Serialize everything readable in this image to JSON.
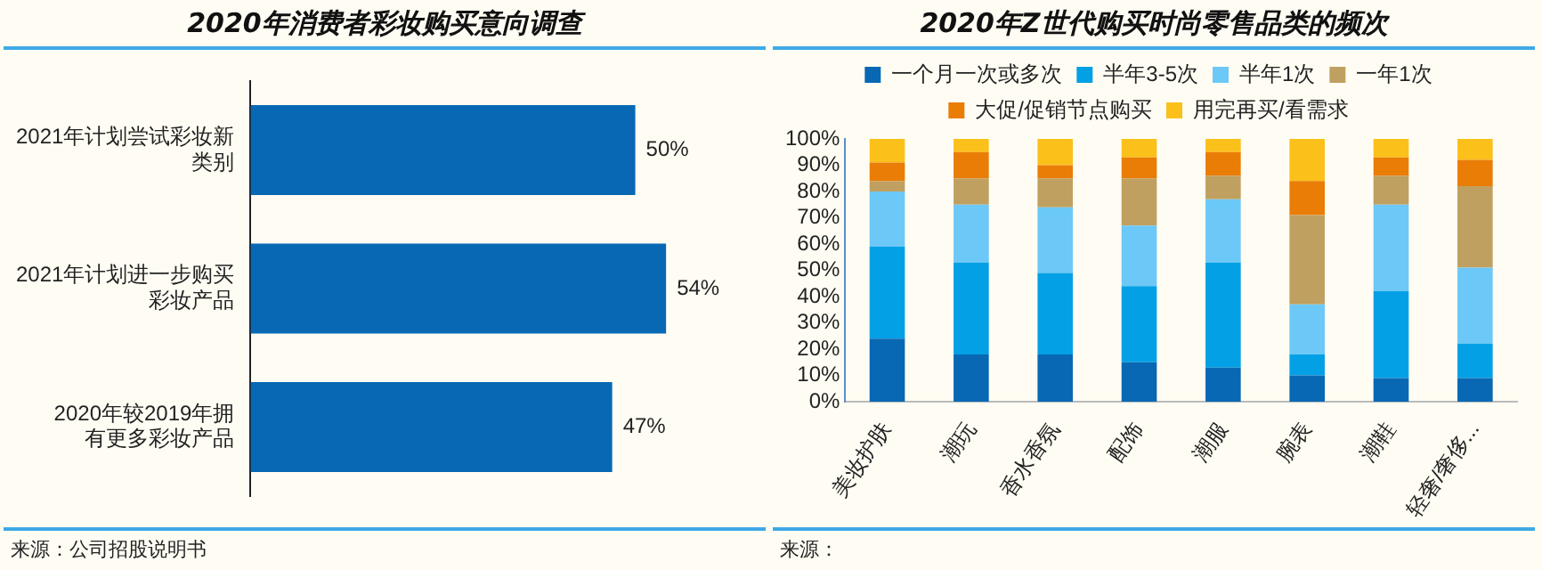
{
  "chart_data": [
    {
      "type": "bar",
      "orientation": "horizontal",
      "title": "2020年消费者彩妆购买意向调查",
      "categories": [
        "2021年计划尝试彩妆新类别",
        "2021年计划进一步购买彩妆产品",
        "2020年较2019年拥有更多彩妆产品"
      ],
      "values": [
        50,
        54,
        47
      ],
      "value_labels": [
        "50%",
        "54%",
        "47%"
      ],
      "color": "#0868b4",
      "grid": false,
      "legend": false,
      "tick_labels": "y",
      "annotations": [
        "来源：公司招股说明书"
      ]
    },
    {
      "type": "bar",
      "stacked": true,
      "title": "2020年Z世代购买时尚零售品类的频次",
      "categories": [
        "美妆护肤",
        "潮玩",
        "香水香氛",
        "配饰",
        "潮服",
        "腕表",
        "潮鞋",
        "轻奢/奢侈..."
      ],
      "series": [
        {
          "name": "一个月一次或多次",
          "color": "#0868b4",
          "values": [
            24,
            18,
            18,
            15,
            13,
            10,
            9,
            9
          ]
        },
        {
          "name": "半年3-5次",
          "color": "#04a0e6",
          "values": [
            35,
            35,
            31,
            29,
            40,
            8,
            33,
            13
          ]
        },
        {
          "name": "半年1次",
          "color": "#6cc8f6",
          "values": [
            21,
            22,
            25,
            23,
            24,
            19,
            33,
            29
          ]
        },
        {
          "name": "一年1次",
          "color": "#c0a060",
          "values": [
            4,
            10,
            11,
            18,
            9,
            34,
            11,
            31
          ]
        },
        {
          "name": "大促/促销节点购买",
          "color": "#ea7d06",
          "values": [
            7,
            10,
            5,
            8,
            9,
            13,
            7,
            10
          ]
        },
        {
          "name": "用完再买/看需求",
          "color": "#fbc01a",
          "values": [
            9,
            5,
            10,
            7,
            5,
            16,
            7,
            8
          ]
        }
      ],
      "ylim": [
        0,
        100
      ],
      "yticks": [
        {
          "value": 0,
          "label": "0%"
        },
        {
          "value": 10,
          "label": "10%"
        },
        {
          "value": 20,
          "label": "20%"
        },
        {
          "value": 30,
          "label": "30%"
        },
        {
          "value": 40,
          "label": "40%"
        },
        {
          "value": 50,
          "label": "50%"
        },
        {
          "value": 60,
          "label": "60%"
        },
        {
          "value": 70,
          "label": "70%"
        },
        {
          "value": 80,
          "label": "80%"
        },
        {
          "value": 90,
          "label": "90%"
        },
        {
          "value": 100,
          "label": "100%"
        }
      ],
      "grid": false,
      "legend": "top",
      "annotations": [
        "来源："
      ]
    }
  ]
}
